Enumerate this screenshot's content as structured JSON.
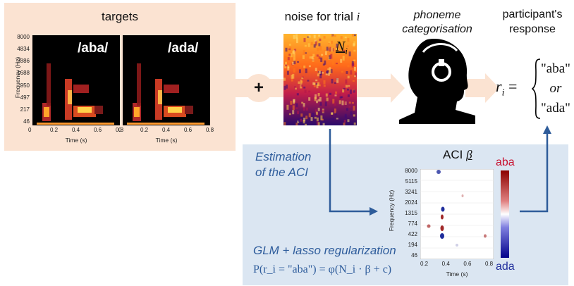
{
  "targets": {
    "title": "targets",
    "stimuli": [
      "/aba/",
      "/ada/"
    ],
    "y_ticks": [
      "8000",
      "4834",
      "2886",
      "1688",
      "950",
      "497",
      "217",
      "46"
    ],
    "x_ticks": [
      "0",
      "0.2",
      "0.4",
      "0.6",
      "0.8"
    ],
    "ylabel": "Frequency (Hz)",
    "xlabel": "Time (s)"
  },
  "plus_sign": "+",
  "noise": {
    "title_prefix": "noise for trial",
    "title_var": "i",
    "symbol_base": "N",
    "symbol_sub": "i"
  },
  "categorisation": {
    "line1": "phoneme",
    "line2": "categorisation"
  },
  "response": {
    "title_line1": "participant's",
    "title_line2": "response",
    "lhs_base": "r",
    "lhs_sub": "i",
    "equals": "=",
    "options": [
      "\"aba\"",
      "or",
      "\"ada\""
    ]
  },
  "estimation": {
    "label_line1": "Estimation",
    "label_line2": "of the ACI",
    "glm_label": "GLM + lasso regularization",
    "formula": "P(r_i = \"aba\") = φ(N_i · β + c)"
  },
  "aci": {
    "title": "ACI",
    "symbol": "β",
    "y_ticks": [
      "8000",
      "5115",
      "3241",
      "2024",
      "1315",
      "774",
      "422",
      "194",
      "46"
    ],
    "x_ticks": [
      "0.2",
      "0.4",
      "0.6",
      "0.8"
    ],
    "ylabel": "Frequency (Hz)",
    "xlabel": "Time (s)",
    "colorbar_top": "aba",
    "colorbar_bottom": "ada"
  },
  "colors": {
    "aba": "#c8102e",
    "ada": "#1f2d9c",
    "arrow": "#2e5c9a",
    "peach": "#fbe3d2",
    "lightblue": "#dbe6f2"
  }
}
